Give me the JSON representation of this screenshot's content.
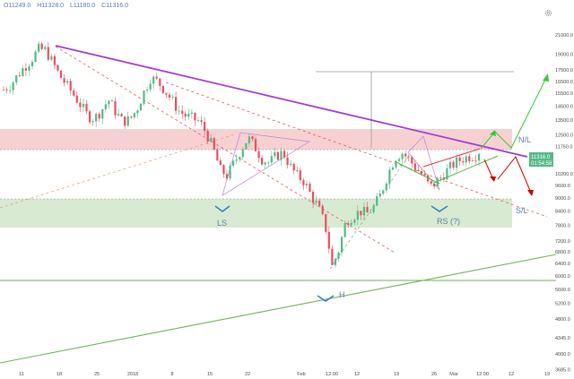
{
  "ohlc": {
    "open_label": "O",
    "open": "11249.0",
    "high_label": "H",
    "high": "11328.0",
    "low_label": "L",
    "low": "11180.0",
    "close_label": "C",
    "close": "11316.0"
  },
  "price_tag": {
    "value": "11316.0",
    "countdown": "01:54:58"
  },
  "annotations": {
    "ls": "LS",
    "h": "H",
    "rs": "RS (?)",
    "nl": "N/L",
    "sl": "S/L"
  },
  "colors": {
    "up": "#53b987",
    "down": "#eb4d5c",
    "neckline": "#9c27b0",
    "resistance_zone": "#f6c0c0",
    "support_zone": "#cfe7c8",
    "price_tag": "#53b987",
    "arrow_up": "#33cc33",
    "arrow_down": "#cc0000",
    "annotation_text": "#5b7fa6"
  },
  "icons": {
    "settings": "gear-icon"
  },
  "chart_data": {
    "type": "candlestick",
    "y_scale": "log",
    "ylim": [
      3400,
      24000
    ],
    "x_ticks": [
      "11",
      "18",
      "25",
      "2018",
      "8",
      "15",
      "22",
      "Feb",
      "12:00",
      "12",
      "19",
      "26",
      "Mar",
      "12:00",
      "12",
      "19"
    ],
    "y_ticks": [
      "21000.0",
      "19000.0",
      "17500.0",
      "16500.0",
      "15500.0",
      "14500.0",
      "13500.0",
      "12500.0",
      "11750.0",
      "10200.0",
      "9600.0",
      "9000.0",
      "8400.0",
      "7800.0",
      "7200.0",
      "6800.0",
      "6400.0",
      "6000.0",
      "5600.0",
      "5200.0",
      "4800.0",
      "4345.0",
      "4000.0",
      "3685.0"
    ],
    "close_series": [
      15800,
      16200,
      17000,
      17800,
      18500,
      19500,
      19400,
      18200,
      17000,
      16200,
      15400,
      14600,
      13800,
      13600,
      14200,
      15000,
      14100,
      13400,
      13500,
      14200,
      15500,
      16800,
      16500,
      15800,
      15000,
      14200,
      13800,
      13600,
      13400,
      12600,
      11600,
      10400,
      10100,
      10800,
      11600,
      12300,
      11700,
      11000,
      10800,
      11200,
      11400,
      10600,
      10100,
      9800,
      9100,
      8600,
      7800,
      6300,
      6900,
      8000,
      8200,
      8400,
      8300,
      8600,
      9200,
      10200,
      11100,
      11400,
      11000,
      10500,
      10100,
      9500,
      9800,
      10200,
      10600,
      10900,
      11100,
      11200,
      11316
    ],
    "zones": [
      {
        "name": "resistance",
        "from": 11300,
        "to": 13300
      },
      {
        "name": "support",
        "from": 7850,
        "to": 8950
      }
    ],
    "horizontal_lines": [
      5900,
      17200
    ],
    "last_price": 11316.0
  }
}
